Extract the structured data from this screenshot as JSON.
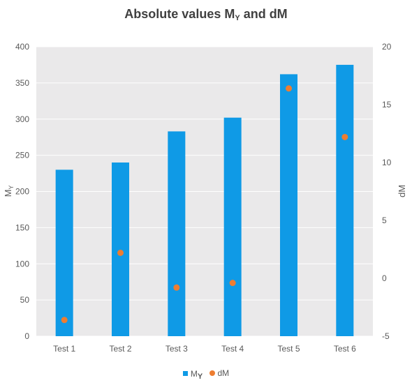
{
  "chart_data": {
    "type": "bar",
    "title_main": "Absolute values M",
    "title_sub": "Y",
    "title_tail": " and dM",
    "categories": [
      "Test 1",
      "Test 2",
      "Test 3",
      "Test 4",
      "Test 5",
      "Test 6"
    ],
    "series": [
      {
        "name": "M",
        "name_sub": "Y",
        "type": "bar",
        "axis": "left",
        "color": "#0f9ae6",
        "values": [
          230,
          240,
          283,
          302,
          362,
          375
        ]
      },
      {
        "name": "dM",
        "type": "scatter",
        "axis": "right",
        "color": "#ed7d31",
        "values": [
          -3.6,
          2.2,
          -0.8,
          -0.4,
          16.4,
          12.2
        ]
      }
    ],
    "ylabel": "M",
    "ylabel_sub": "Y",
    "y2label": "dM",
    "ylim": [
      0,
      400
    ],
    "y2lim": [
      -5,
      20
    ],
    "yticks": [
      "0",
      "50",
      "100",
      "150",
      "200",
      "250",
      "300",
      "350",
      "400"
    ],
    "y2ticks": [
      "-5",
      "0",
      "5",
      "10",
      "15",
      "20"
    ],
    "grid": true,
    "plot_background": "#eae9ea",
    "grid_color": "#ffffff",
    "legend_position": "bottom"
  }
}
